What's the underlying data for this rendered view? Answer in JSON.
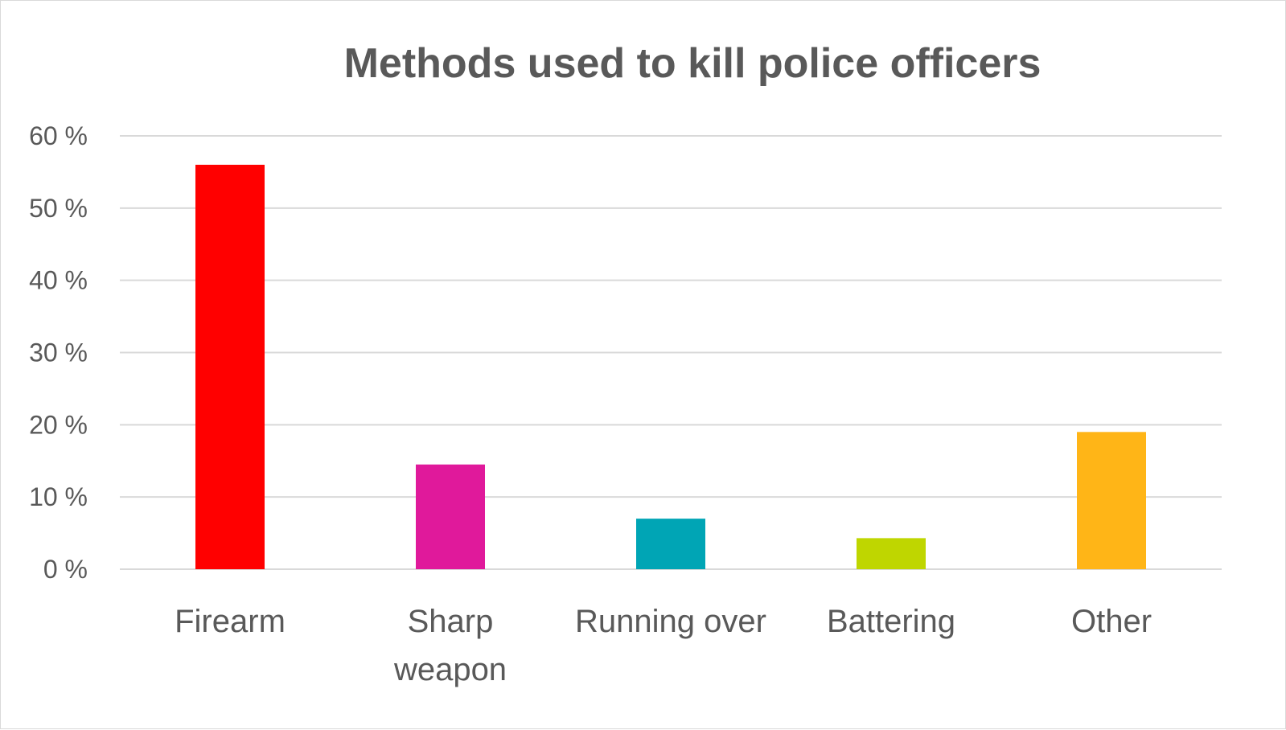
{
  "chart_data": {
    "type": "bar",
    "title": "Methods used to kill police officers",
    "xlabel": "",
    "ylabel": "",
    "categories": [
      "Firearm",
      "Sharp weapon",
      "Running over",
      "Battering",
      "Other"
    ],
    "category_lines": [
      [
        "Firearm"
      ],
      [
        "Sharp",
        "weapon"
      ],
      [
        "Running over"
      ],
      [
        "Battering"
      ],
      [
        "Other"
      ]
    ],
    "values": [
      56,
      14.5,
      7,
      4.3,
      19
    ],
    "bar_colors": [
      "#ff0000",
      "#e0199b",
      "#00a5b5",
      "#bfd600",
      "#ffb517"
    ],
    "ylim": [
      0,
      60
    ],
    "yticks": [
      0,
      10,
      20,
      30,
      40,
      50,
      60
    ],
    "ytick_labels": [
      "0 %",
      "10 %",
      "20 %",
      "30 %",
      "40 %",
      "50 %",
      "60 %"
    ],
    "grid": true,
    "legend": "none"
  }
}
